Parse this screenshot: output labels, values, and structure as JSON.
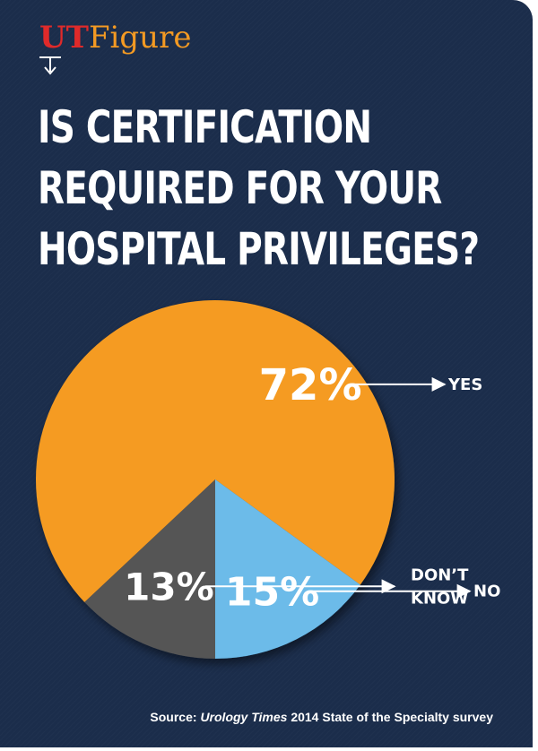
{
  "logo": {
    "brand": "UT",
    "word": "Figure"
  },
  "title_lines": [
    "IS CERTIFICATION",
    "REQUIRED FOR YOUR",
    "HOSPITAL PRIVILEGES?"
  ],
  "source": {
    "prefix": "Source: ",
    "publication": "Urology Times",
    "rest": " 2014 State of the Specialty survey"
  },
  "colors": {
    "background": "#1b2d4b",
    "yes": "#f59b22",
    "no": "#6cbbe9",
    "dont_know": "#555555",
    "brand_red": "#e02a2a"
  },
  "chart_data": {
    "type": "pie",
    "title": "IS CERTIFICATION REQUIRED FOR YOUR HOSPITAL PRIVILEGES?",
    "categories": [
      "YES",
      "NO",
      "DON'T KNOW"
    ],
    "values": [
      72,
      15,
      13
    ],
    "labels": [
      "72%",
      "15%",
      "13%"
    ],
    "category_labels": [
      [
        "YES"
      ],
      [
        "NO"
      ],
      [
        "DON’T",
        "KNOW"
      ]
    ]
  }
}
